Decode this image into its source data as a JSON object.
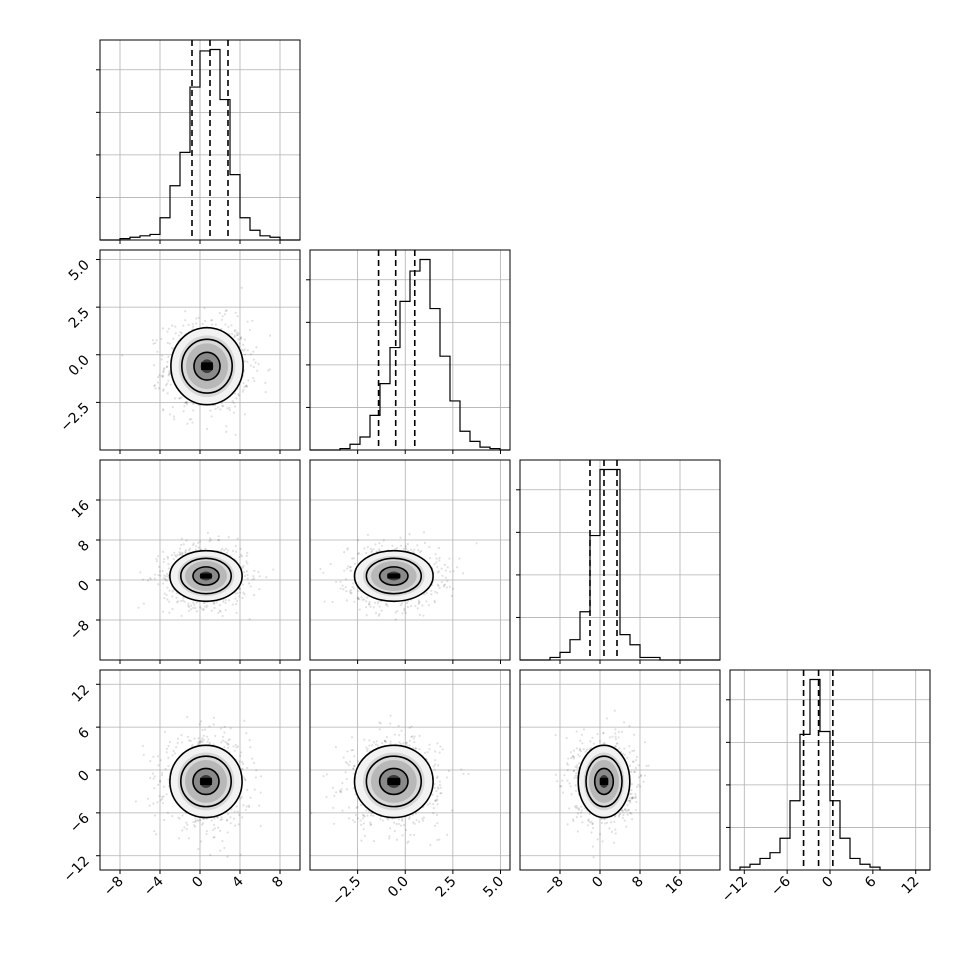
{
  "chart_data": {
    "type": "corner",
    "grid": true,
    "dimensions": [
      {
        "range": [
          -10,
          10
        ],
        "ticks": [
          -8,
          -4,
          0,
          4,
          8
        ],
        "tick_labels": [
          "−8",
          "−4",
          "0",
          "4",
          "8"
        ],
        "quantiles": [
          -0.8,
          1.0,
          2.8
        ],
        "hist_counts": [
          0,
          0,
          1,
          2,
          3,
          4,
          16,
          39,
          63,
          110,
          136,
          137,
          101,
          47,
          16,
          7,
          3,
          2,
          0,
          0
        ]
      },
      {
        "range": [
          -5,
          5.5
        ],
        "ticks": [
          -2.5,
          0.0,
          2.5,
          5.0
        ],
        "tick_labels": [
          "−2.5",
          "0.0",
          "2.5",
          "5.0"
        ],
        "quantiles": [
          -1.4,
          -0.5,
          0.5
        ],
        "hist_counts": [
          0,
          0,
          0,
          1,
          4,
          9,
          24,
          46,
          71,
          103,
          124,
          132,
          98,
          65,
          34,
          13,
          6,
          2,
          1,
          0
        ]
      },
      {
        "range": [
          -16,
          24
        ],
        "ticks": [
          -8,
          0,
          8,
          16
        ],
        "tick_labels": [
          "−8",
          "0",
          "8",
          "16"
        ],
        "quantiles": [
          -2.0,
          0.8,
          3.4
        ],
        "hist_counts": [
          0,
          0,
          0,
          1,
          3,
          8,
          19,
          49,
          75,
          75,
          10,
          6,
          1,
          1,
          0,
          0,
          0,
          0,
          0,
          0
        ]
      },
      {
        "range": [
          -14,
          14
        ],
        "ticks": [
          -12,
          -6,
          0,
          6,
          12
        ],
        "tick_labels": [
          "−12",
          "−6",
          "0",
          "6",
          "12"
        ],
        "quantiles": [
          -3.7,
          -1.6,
          0.4
        ],
        "hist_counts": [
          0,
          1,
          2,
          4,
          6,
          11,
          24,
          47,
          66,
          48,
          24,
          11,
          4,
          2,
          1,
          0,
          0,
          0,
          0,
          0
        ]
      }
    ],
    "pairs": [
      {
        "x": 0,
        "y": 1,
        "center": [
          0.7,
          -0.6
        ],
        "spread": [
          2.1,
          1.2
        ]
      },
      {
        "x": 0,
        "y": 2,
        "center": [
          0.6,
          0.8
        ],
        "spread": [
          2.1,
          3.0
        ]
      },
      {
        "x": 1,
        "y": 2,
        "center": [
          -0.6,
          0.8
        ],
        "spread": [
          1.2,
          3.0
        ]
      },
      {
        "x": 0,
        "y": 3,
        "center": [
          0.6,
          -1.6
        ],
        "spread": [
          2.1,
          3.0
        ]
      },
      {
        "x": 1,
        "y": 3,
        "center": [
          -0.6,
          -1.6
        ],
        "spread": [
          1.2,
          3.0
        ]
      },
      {
        "x": 2,
        "y": 3,
        "center": [
          0.8,
          -1.6
        ],
        "spread": [
          3.0,
          3.0
        ]
      }
    ]
  }
}
